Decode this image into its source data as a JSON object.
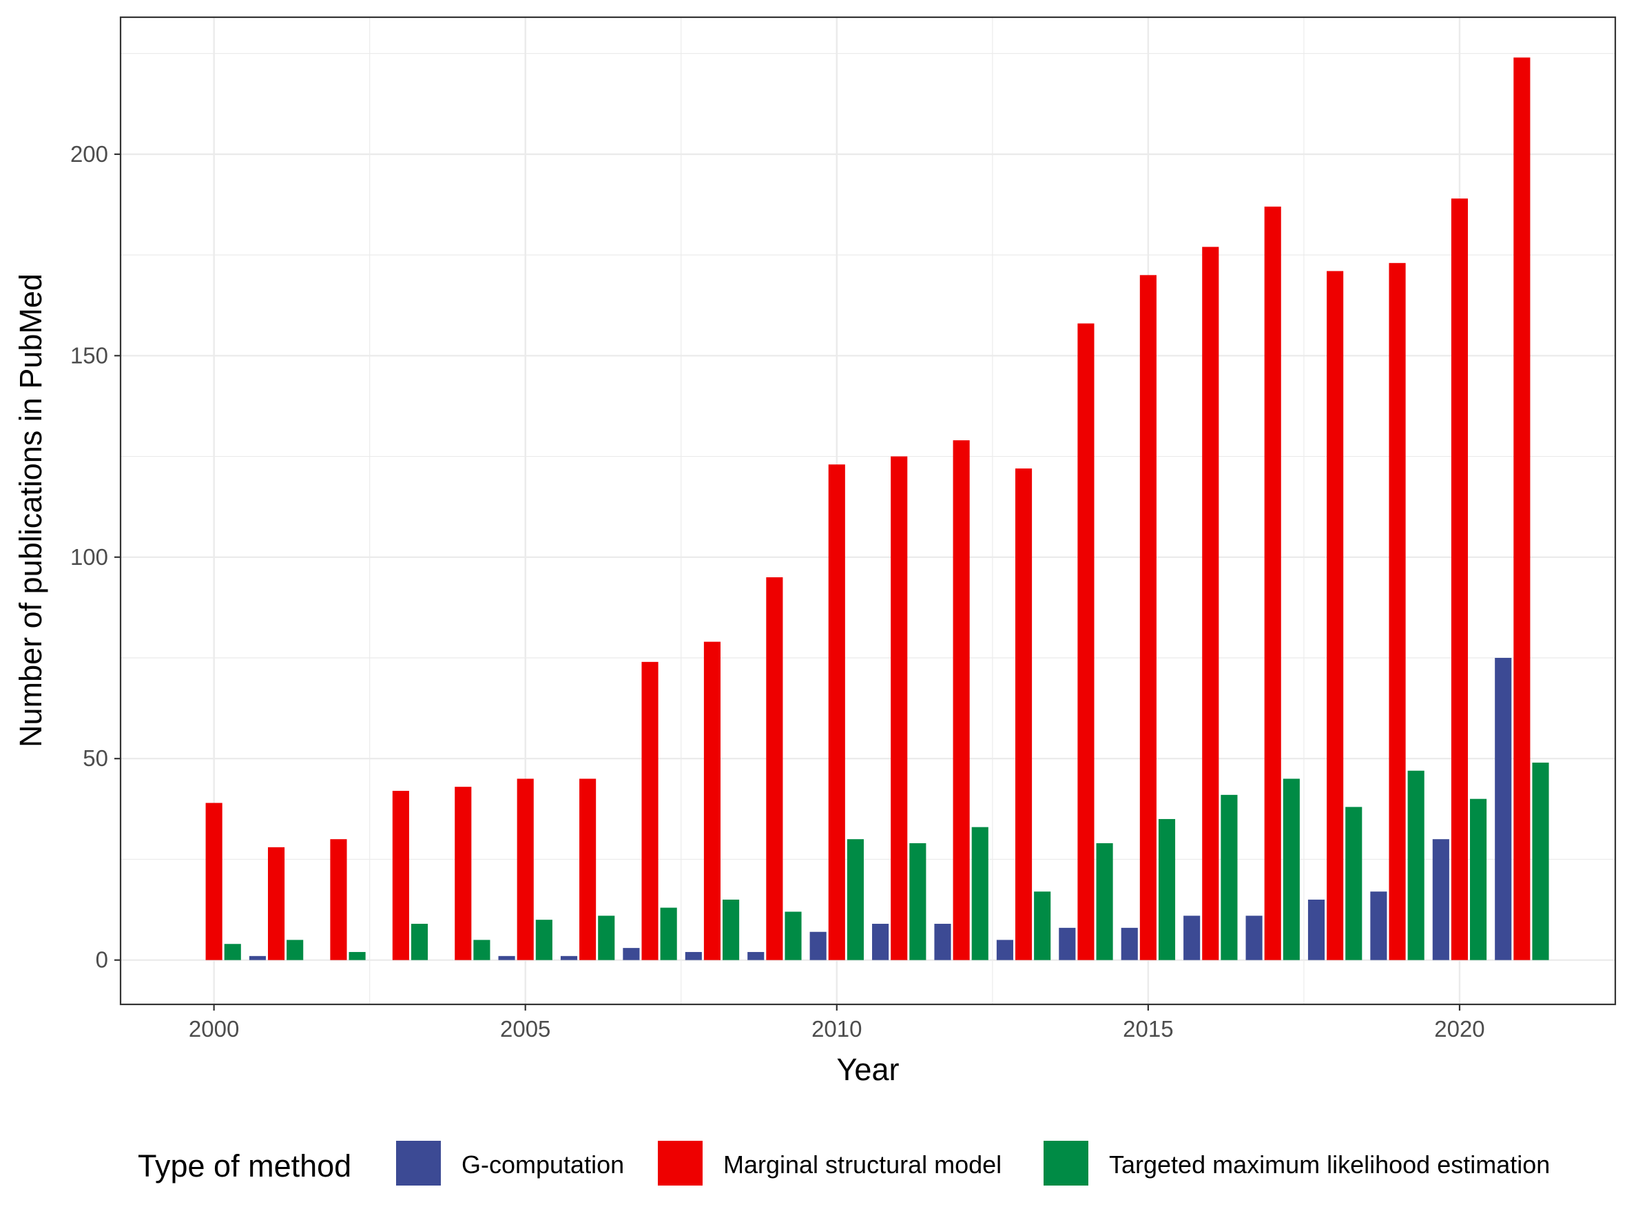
{
  "chart_data": {
    "type": "bar",
    "title": "",
    "xlabel": "Year",
    "ylabel": "Number of publications in PubMed",
    "x": [
      2000,
      2001,
      2002,
      2003,
      2004,
      2005,
      2006,
      2007,
      2008,
      2009,
      2010,
      2011,
      2012,
      2013,
      2014,
      2015,
      2016,
      2017,
      2018,
      2019,
      2020,
      2021
    ],
    "x_ticks": [
      "2000",
      "2005",
      "2010",
      "2015",
      "2020"
    ],
    "y_ticks": [
      "0",
      "50",
      "100",
      "150",
      "200"
    ],
    "xlim": [
      1998.5,
      2022.5
    ],
    "ylim": [
      -11,
      234
    ],
    "grid": true,
    "legend": {
      "title": "Type of method",
      "position": "bottom"
    },
    "series": [
      {
        "name": "G-computation",
        "color": "#3C4A94",
        "values": [
          0,
          1,
          0,
          0,
          0,
          1,
          1,
          3,
          2,
          2,
          7,
          9,
          9,
          5,
          8,
          8,
          11,
          11,
          15,
          17,
          30,
          75
        ]
      },
      {
        "name": "Marginal structural model",
        "color": "#EE0000",
        "values": [
          39,
          28,
          30,
          42,
          43,
          45,
          45,
          74,
          79,
          95,
          123,
          125,
          129,
          122,
          158,
          170,
          177,
          187,
          171,
          173,
          189,
          224
        ]
      },
      {
        "name": "Targeted maximum likelihood estimation",
        "color": "#008B45",
        "values": [
          4,
          5,
          2,
          9,
          5,
          10,
          11,
          13,
          15,
          12,
          30,
          29,
          33,
          17,
          29,
          35,
          41,
          45,
          38,
          47,
          40,
          49
        ]
      }
    ]
  }
}
